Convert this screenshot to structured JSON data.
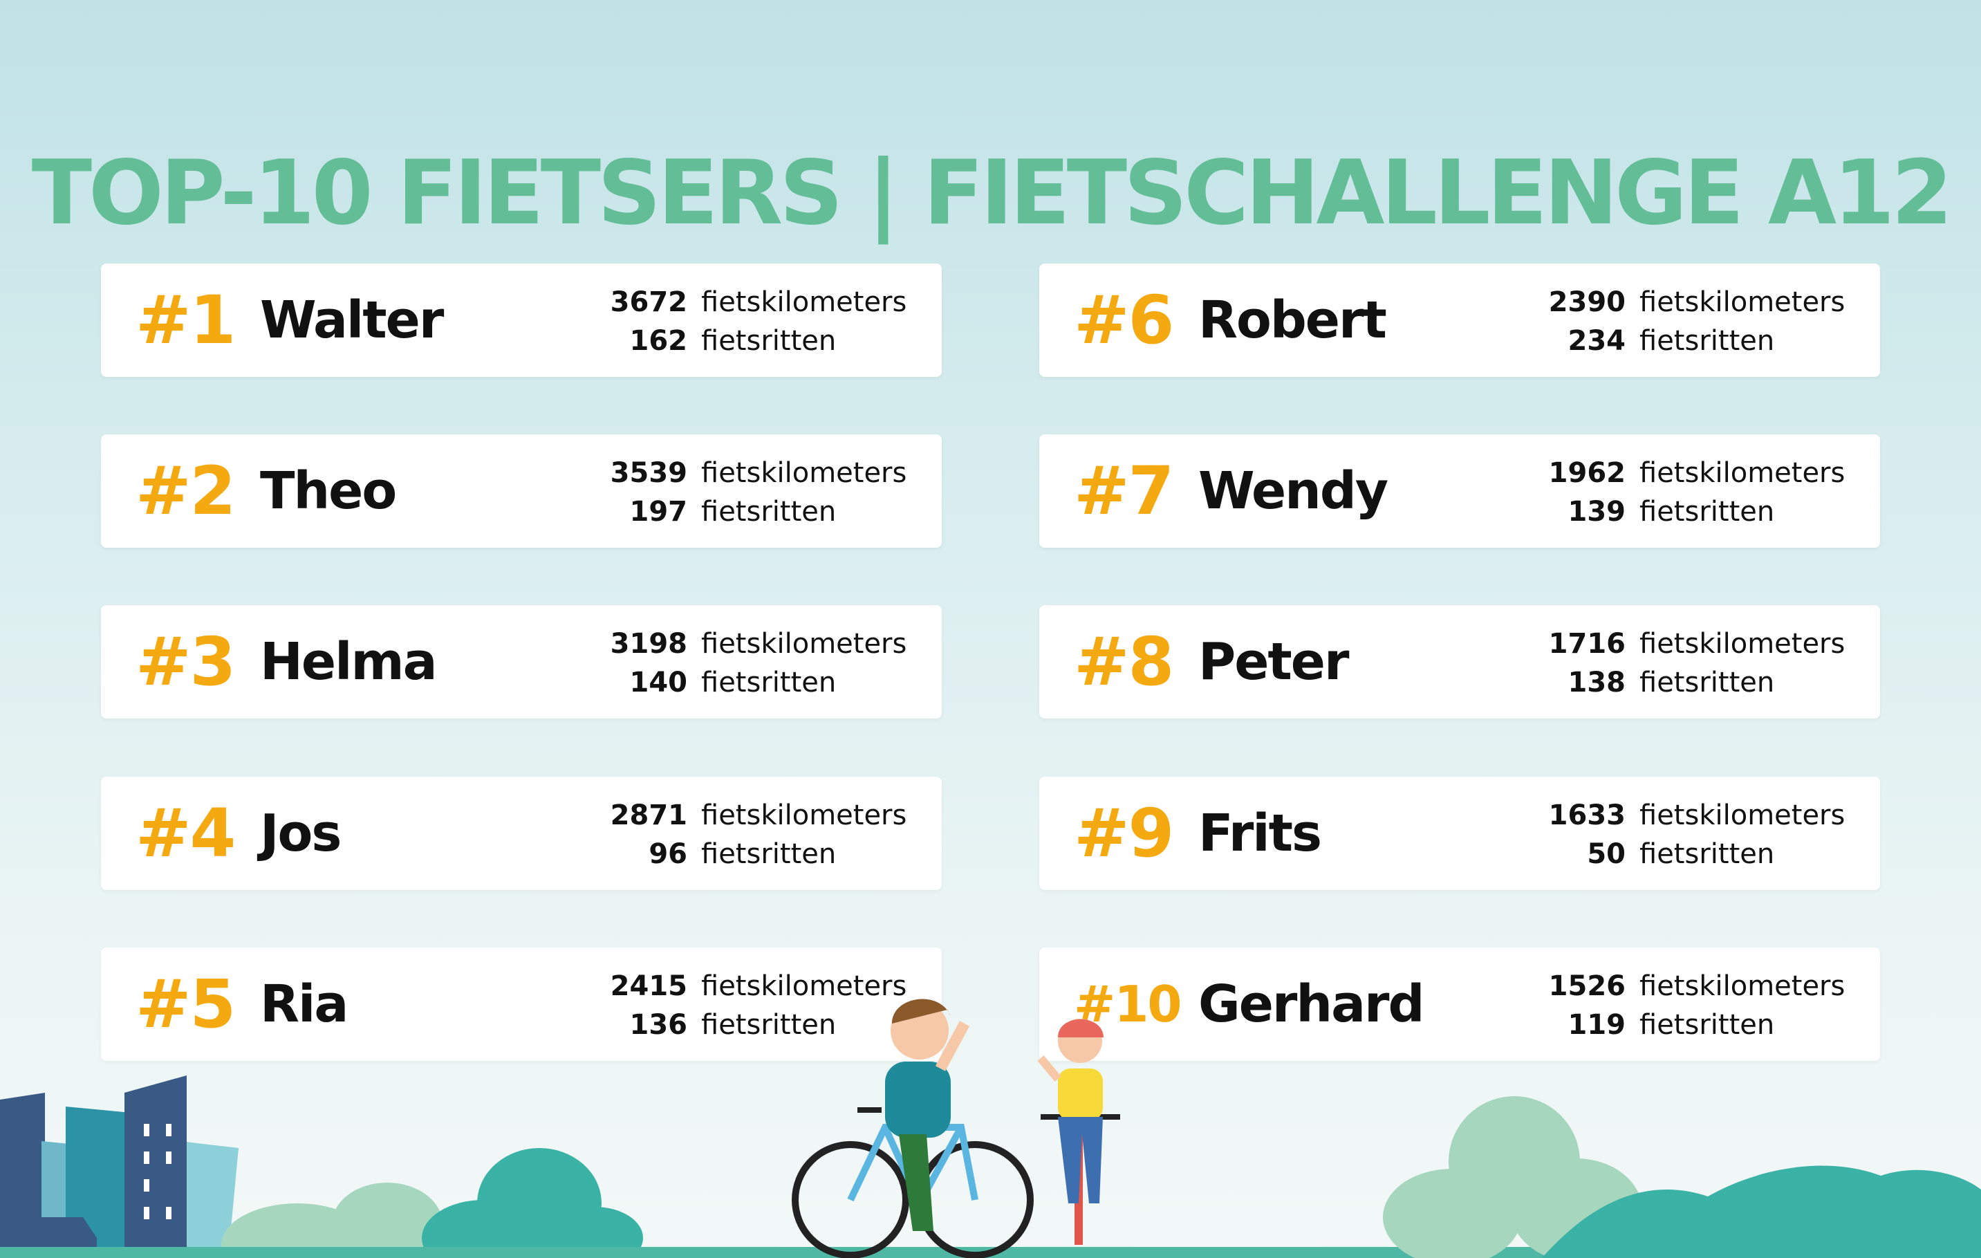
{
  "title": "TOP-10 FIETSERS | FIETSCHALLENGE A12",
  "colors": {
    "title": "#63bd97",
    "rank": "#f5a911",
    "name": "#111111"
  },
  "units": {
    "km": "fietskilometers",
    "rides": "fietsritten"
  },
  "riders": [
    {
      "rank": "#1",
      "name": "Walter",
      "km": "3672",
      "km_unit": "fietskilometers",
      "rides": "162",
      "rides_unit": "fietsritten"
    },
    {
      "rank": "#2",
      "name": "Theo",
      "km": "3539",
      "km_unit": "fietskilometers",
      "rides": "197",
      "rides_unit": "fietsritten"
    },
    {
      "rank": "#3",
      "name": "Helma",
      "km": "3198",
      "km_unit": "fietskilometers",
      "rides": "140",
      "rides_unit": "fietsritten"
    },
    {
      "rank": "#4",
      "name": "Jos",
      "km": "2871",
      "km_unit": "fietskilometers",
      "rides": "96",
      "rides_unit": "fietsritten"
    },
    {
      "rank": "#5",
      "name": "Ria",
      "km": "2415",
      "km_unit": "fietskilometers",
      "rides": "136",
      "rides_unit": "fietsritten"
    },
    {
      "rank": "#6",
      "name": "Robert",
      "km": "2390",
      "km_unit": "fietskilometers",
      "rides": "234",
      "rides_unit": "fietsritten"
    },
    {
      "rank": "#7",
      "name": "Wendy",
      "km": "1962",
      "km_unit": "fietskilometers",
      "rides": "139",
      "rides_unit": "fietsritten"
    },
    {
      "rank": "#8",
      "name": "Peter",
      "km": "1716",
      "km_unit": "fietskilometers",
      "rides": "138",
      "rides_unit": "fietsritten"
    },
    {
      "rank": "#9",
      "name": "Frits",
      "km": "1633",
      "km_unit": "fietskilometers",
      "rides": "50",
      "rides_unit": "fietsritten"
    },
    {
      "rank": "#10",
      "name": "Gerhard",
      "km": "1526",
      "km_unit": "fietskilometers",
      "rides": "119",
      "rides_unit": "fietsritten"
    }
  ],
  "illustration": {
    "left": "city-buildings",
    "center": "two-cyclists",
    "ground": "green-hills"
  }
}
